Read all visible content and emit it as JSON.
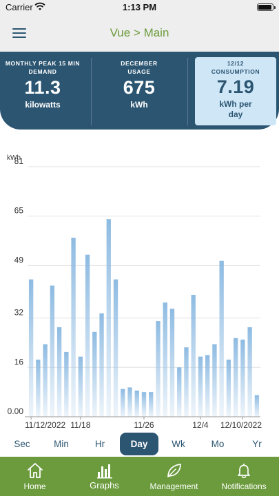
{
  "status_bar": {
    "carrier": "Carrier",
    "time": "1:13 PM"
  },
  "nav": {
    "title": "Vue > Main"
  },
  "metrics": [
    {
      "label": "MONTHLY PEAK 15 MIN DEMAND",
      "value": "11.3",
      "unit": "kilowatts",
      "highlighted": false
    },
    {
      "label": "DECEMBER USAGE",
      "value": "675",
      "unit": "kWh",
      "highlighted": false
    },
    {
      "label": "12/12 CONSUMPTION",
      "value": "7.19",
      "unit": "kWh per day",
      "highlighted": true
    }
  ],
  "chart_data": {
    "type": "bar",
    "ylabel": "kWh",
    "ylim": [
      0,
      81
    ],
    "yticks": [
      "81",
      "65",
      "49",
      "32",
      "16",
      "0.00"
    ],
    "ytick_values": [
      81,
      65,
      49,
      32,
      16,
      0
    ],
    "grid": true,
    "x_tick_labels": [
      {
        "label": "11/12/2022",
        "index": 0
      },
      {
        "label": "11/18",
        "index": 7
      },
      {
        "label": "11/26",
        "index": 16
      },
      {
        "label": "12/4",
        "index": 24
      },
      {
        "label": "12/10/2022",
        "index": 30
      }
    ],
    "values": [
      44.5,
      18.5,
      23.5,
      42.5,
      29,
      21,
      58,
      19.5,
      52.5,
      27.5,
      33.5,
      64,
      44.5,
      9,
      9.5,
      8.5,
      8,
      8,
      31,
      37,
      35,
      16,
      22.5,
      39.5,
      19.5,
      20,
      23.5,
      50.5,
      18.5,
      25.5,
      25,
      29,
      7
    ],
    "bar_color": "#8ebbe2"
  },
  "range_tabs": {
    "items": [
      "Sec",
      "Min",
      "Hr",
      "Day",
      "Wk",
      "Mo",
      "Yr"
    ],
    "selected": "Day"
  },
  "tab_bar": {
    "items": [
      {
        "label": "Home",
        "icon": "home-icon"
      },
      {
        "label": "Graphs",
        "icon": "graphs-icon"
      },
      {
        "label": "Management",
        "icon": "leaf-icon"
      },
      {
        "label": "Notifications",
        "icon": "bell-icon"
      }
    ],
    "active": "Graphs"
  },
  "colors": {
    "header_blue": "#2b5571",
    "accent_green": "#6b9b3c",
    "highlight_card": "#cfe6f6"
  }
}
